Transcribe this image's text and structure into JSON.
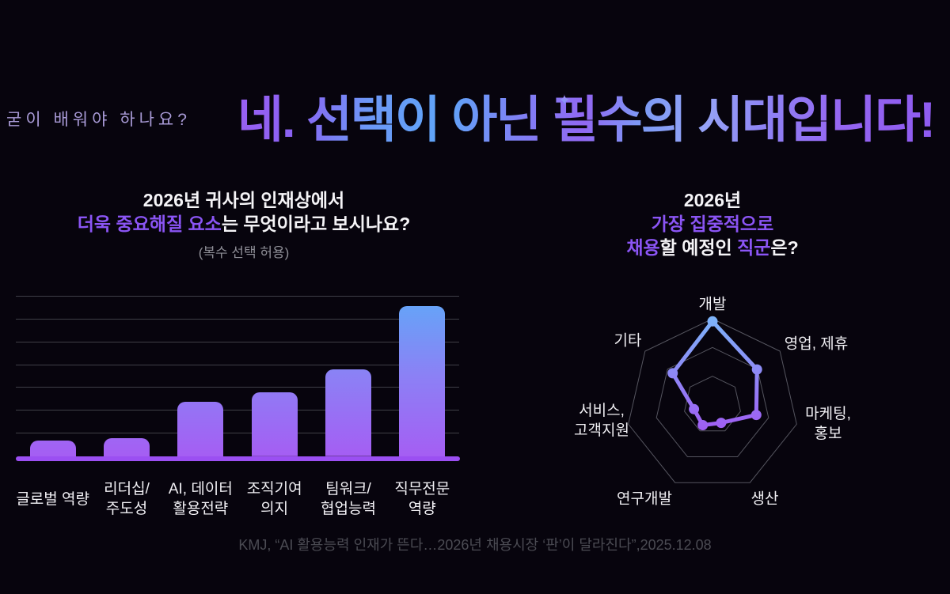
{
  "page": {
    "background": "#07040d"
  },
  "colors": {
    "highlight_purple": "#8b55f5",
    "axis_purple": "#9b4ff2",
    "footer_gray": "#4b4b53",
    "kicker_lavender": "#a89ad6"
  },
  "header": {
    "kicker": "굳이 배워야 하나요?",
    "title": "네. 선택이 아닌 필수의 시대입니다!",
    "sparkle_icon": "✦"
  },
  "bar_section": {
    "title_line1": "2026년 귀사의 인재상에서",
    "title_line2_highlight": "더욱 중요해질 요소",
    "title_line2_rest": "는 무엇이라고 보시나요?",
    "subtitle": "(복수 선택 허용)"
  },
  "radar_section": {
    "title_line1": "2026년",
    "title_line2": "가장 집중적으로",
    "title_line3_parts": [
      {
        "text": "채용",
        "highlight": true
      },
      {
        "text": "할 예정인 ",
        "highlight": false
      },
      {
        "text": "직군",
        "highlight": true
      },
      {
        "text": "은?",
        "highlight": false
      }
    ]
  },
  "footer": {
    "citation": "KMJ, “AI 활용능력 인재가 뜬다…2026년 채용시장 ‘판’이 달라진다”,2025.12.08"
  },
  "chart_data": [
    {
      "type": "bar",
      "title": "2026년 귀사의 인재상에서 더욱 중요해질 요소는 무엇이라고 보시나요? (복수 선택 허용)",
      "categories": [
        [
          "글로벌 역량"
        ],
        [
          "리더십/",
          "주도성"
        ],
        [
          "AI, 데이터",
          "활용전략"
        ],
        [
          "조직기여",
          "의지"
        ],
        [
          "팀워크/",
          "협업능력"
        ],
        [
          "직무전문",
          "역량"
        ]
      ],
      "values": [
        7,
        8,
        24,
        28,
        38,
        66
      ],
      "ylim": [
        0,
        70
      ],
      "gridline_step": 10,
      "grid": true,
      "legend": "none",
      "bar_gradient_top": "#62a7f8",
      "bar_gradient_mid": "#8c80f5",
      "bar_gradient_bottom": "#a55ef3",
      "axis_color": "#9b4ff2",
      "gridline_color": "#3f3f47"
    },
    {
      "type": "radar",
      "title": "2026년 가장 집중적으로 채용할 예정인 직군은?",
      "categories": [
        [
          "개발"
        ],
        [
          "영업, 제휴"
        ],
        [
          "마케팅,",
          "홍보"
        ],
        [
          "생산"
        ],
        [
          "연구개발"
        ],
        [
          "서비스,",
          "고객지원"
        ],
        [
          "기타"
        ]
      ],
      "values": [
        97,
        66,
        52,
        23,
        26,
        22,
        59
      ],
      "max": 100,
      "rings": 3,
      "grid_color": "#55555f",
      "stroke_gradient_top": "#7db2f9",
      "stroke_gradient_bottom": "#a05df3"
    }
  ]
}
